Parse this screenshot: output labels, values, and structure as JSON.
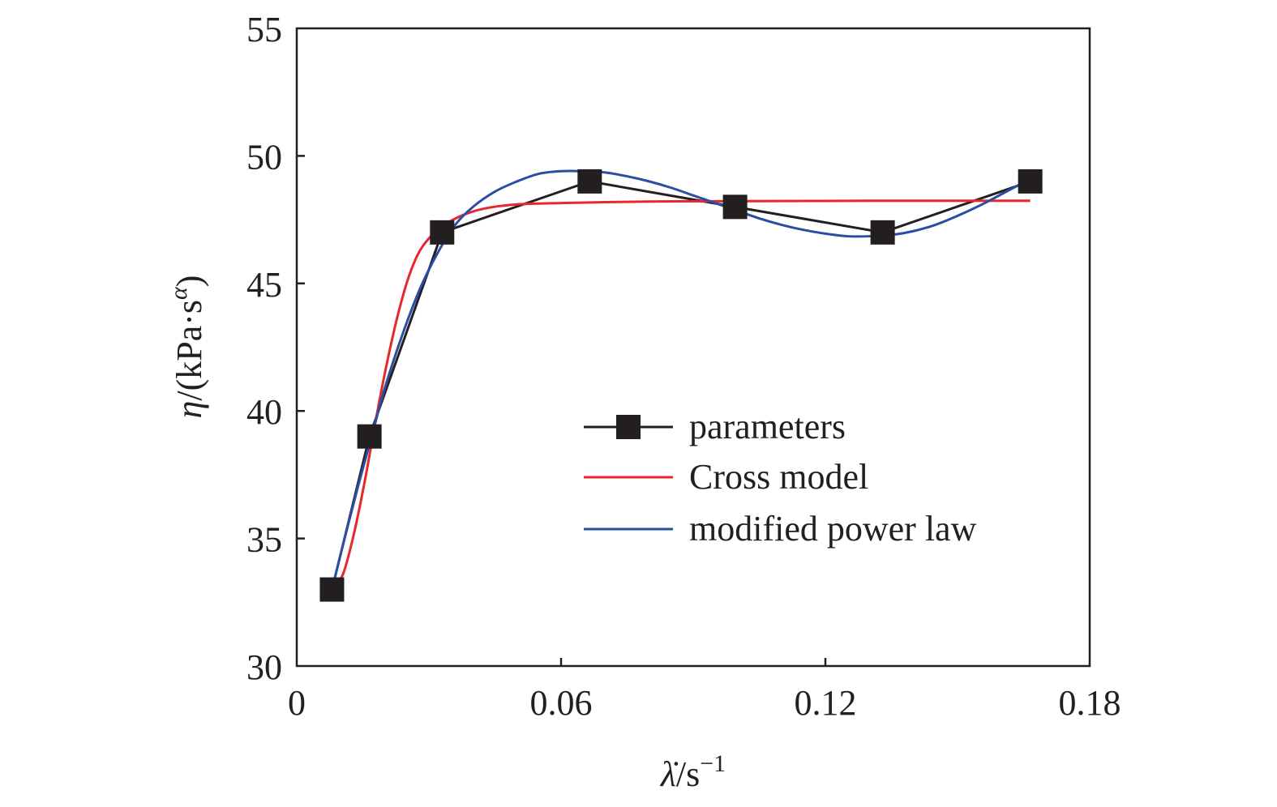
{
  "chart_data": {
    "type": "line",
    "xlabel": "λ̇/s",
    "xlabel_parts": {
      "base": "λ",
      "dot": "̇",
      "unit": "/s",
      "exp": "−1"
    },
    "ylabel": "η/(kPa·s^α)",
    "ylabel_parts": {
      "symbol": "η",
      "open": "/(kPa·s",
      "exp": "α",
      "close": ")"
    },
    "xlim": [
      0,
      0.18
    ],
    "ylim": [
      30,
      55
    ],
    "x_ticks": [
      0,
      0.06,
      0.12,
      0.18
    ],
    "x_tick_labels": [
      "0",
      "0.06",
      "0.12",
      "0.18"
    ],
    "y_ticks": [
      30,
      35,
      40,
      45,
      50,
      55
    ],
    "y_tick_labels": [
      "30",
      "35",
      "40",
      "45",
      "50",
      "55"
    ],
    "grid": false,
    "legend_position": "center-right",
    "series": [
      {
        "name": "parameters",
        "color": "#231f20",
        "marker": "square",
        "x": [
          0.008,
          0.0165,
          0.033,
          0.0665,
          0.0995,
          0.133,
          0.1665
        ],
        "y": [
          33,
          39,
          47,
          49,
          48,
          47,
          49
        ]
      },
      {
        "name": "Cross model",
        "color": "#e8262d",
        "marker": "none",
        "x": [
          0.008,
          0.0105,
          0.013,
          0.0155,
          0.018,
          0.0205,
          0.023,
          0.0255,
          0.028,
          0.031,
          0.034,
          0.038,
          0.043,
          0.05,
          0.06,
          0.075,
          0.09,
          0.11,
          0.13,
          0.15,
          0.1665
        ],
        "y": [
          33,
          33.6,
          35.2,
          37.3,
          39.7,
          41.9,
          43.8,
          45.3,
          46.3,
          46.95,
          47.35,
          47.7,
          47.95,
          48.1,
          48.15,
          48.2,
          48.22,
          48.23,
          48.24,
          48.24,
          48.24
        ]
      },
      {
        "name": "modified power law",
        "color": "#2b4ea2",
        "marker": "none",
        "x": [
          0.008,
          0.011,
          0.014,
          0.017,
          0.02,
          0.024,
          0.028,
          0.032,
          0.036,
          0.04,
          0.045,
          0.05,
          0.055,
          0.06,
          0.065,
          0.07,
          0.075,
          0.08,
          0.085,
          0.09,
          0.095,
          0.1,
          0.105,
          0.11,
          0.115,
          0.12,
          0.125,
          0.13,
          0.135,
          0.14,
          0.145,
          0.15,
          0.155,
          0.16,
          0.1665
        ],
        "y": [
          33,
          35.1,
          37.1,
          39.0,
          40.9,
          43.0,
          44.8,
          46.2,
          47.3,
          48.0,
          48.6,
          49.0,
          49.3,
          49.4,
          49.4,
          49.35,
          49.2,
          49.0,
          48.75,
          48.45,
          48.15,
          47.85,
          47.55,
          47.3,
          47.1,
          46.95,
          46.85,
          46.85,
          46.9,
          47.05,
          47.3,
          47.65,
          48.05,
          48.5,
          49.1
        ]
      }
    ]
  }
}
